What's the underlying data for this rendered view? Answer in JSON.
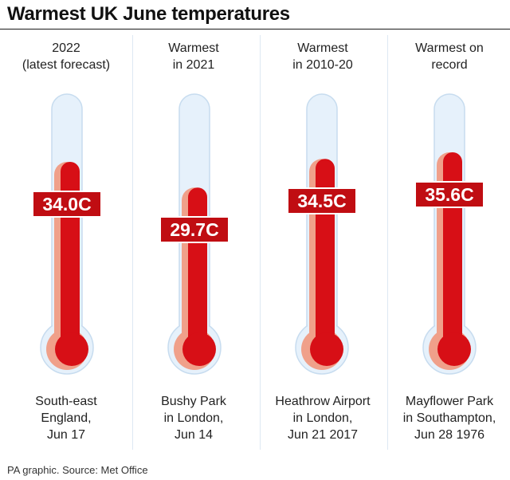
{
  "chart_data": {
    "type": "bar",
    "title": "Warmest UK June temperatures",
    "unit": "C",
    "categories": [
      "2022\n(latest forecast)",
      "Warmest\nin 2021",
      "Warmest\nin 2010-20",
      "Warmest on\nrecord"
    ],
    "locations": [
      "South-east\nEngland,\nJun 17",
      "Bushy Park\nin London,\nJun 14",
      "Heathrow Airport\nin London,\nJun 21 2017",
      "Mayflower Park\nin Southampton,\nJun 28 1976"
    ],
    "values": [
      34.0,
      29.7,
      34.5,
      35.6
    ],
    "labels": [
      "34.0C",
      "29.7C",
      "34.5C",
      "35.6C"
    ],
    "colors": {
      "mercury": "#d70f16",
      "mercury_shade": "#f0a08a",
      "glass": "#e6f1fb",
      "glass_edge": "#c7dcef",
      "label_bg": "#c00d12"
    }
  },
  "footer": {
    "source": "PA graphic. Source: Met Office"
  }
}
